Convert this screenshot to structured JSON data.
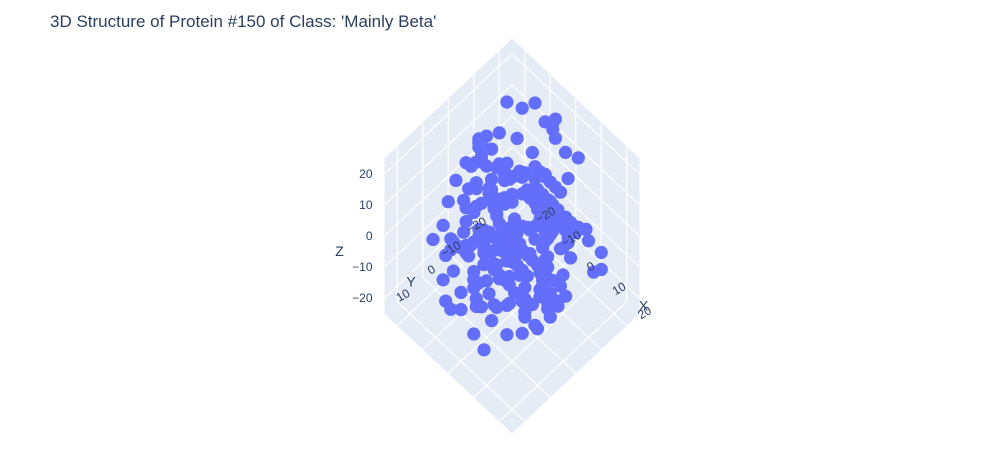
{
  "chart_data": {
    "type": "scatter",
    "title": "3D Structure of Protein #150 of Class: 'Mainly Beta'",
    "axes": {
      "x": {
        "label": "X",
        "ticks": [
          "−20",
          "−10",
          "0",
          "10",
          "20"
        ]
      },
      "y": {
        "label": "Y",
        "ticks": [
          "−20",
          "−10",
          "0",
          "10"
        ]
      },
      "z": {
        "label": "Z",
        "ticks": [
          "−20",
          "−10",
          "0",
          "10",
          "20"
        ]
      }
    },
    "grid": true,
    "marker_color": "#636efa",
    "pane_color": "#e5ecf6",
    "series": [
      {
        "points": [
          [
            -2,
            -18,
            21
          ],
          [
            0,
            -16,
            22
          ],
          [
            3,
            -14,
            23
          ],
          [
            6,
            -15,
            20
          ],
          [
            9,
            -17,
            19
          ],
          [
            10,
            -12,
            17
          ],
          [
            4,
            -9,
            16
          ],
          [
            -1,
            -6,
            15
          ],
          [
            -6,
            -4,
            12
          ],
          [
            -10,
            -2,
            9
          ],
          [
            -13,
            1,
            6
          ],
          [
            -15,
            4,
            3
          ],
          [
            -12,
            6,
            0
          ],
          [
            -8,
            3,
            -2
          ],
          [
            -5,
            0,
            -4
          ],
          [
            -2,
            -3,
            -6
          ],
          [
            2,
            -5,
            -8
          ],
          [
            5,
            -8,
            -10
          ],
          [
            8,
            -6,
            -12
          ],
          [
            11,
            -2,
            -11
          ],
          [
            13,
            2,
            -8
          ],
          [
            10,
            5,
            -5
          ],
          [
            6,
            7,
            -3
          ],
          [
            3,
            9,
            0
          ],
          [
            0,
            11,
            3
          ],
          [
            -4,
            9,
            6
          ],
          [
            -8,
            6,
            8
          ],
          [
            -11,
            3,
            11
          ],
          [
            -14,
            0,
            13
          ],
          [
            -16,
            -4,
            15
          ],
          [
            -13,
            -8,
            17
          ],
          [
            -9,
            -11,
            16
          ],
          [
            -5,
            -13,
            13
          ],
          [
            -1,
            -10,
            10
          ],
          [
            3,
            -7,
            8
          ],
          [
            7,
            -4,
            6
          ],
          [
            11,
            -1,
            4
          ],
          [
            14,
            2,
            2
          ],
          [
            16,
            5,
            -1
          ],
          [
            13,
            8,
            -4
          ],
          [
            9,
            10,
            -7
          ],
          [
            5,
            12,
            -9
          ],
          [
            1,
            13,
            -12
          ],
          [
            -3,
            11,
            -14
          ],
          [
            -7,
            8,
            -16
          ],
          [
            -10,
            5,
            -18
          ],
          [
            -13,
            2,
            -20
          ],
          [
            -11,
            -1,
            -17
          ],
          [
            -8,
            -4,
            -14
          ],
          [
            -4,
            -7,
            -11
          ],
          [
            0,
            -9,
            -8
          ],
          [
            4,
            -11,
            -5
          ],
          [
            8,
            -13,
            -2
          ],
          [
            12,
            -10,
            1
          ],
          [
            15,
            -7,
            4
          ],
          [
            17,
            -3,
            7
          ],
          [
            14,
            0,
            10
          ],
          [
            10,
            3,
            12
          ],
          [
            6,
            5,
            14
          ],
          [
            2,
            7,
            11
          ],
          [
            -2,
            4,
            8
          ],
          [
            -6,
            1,
            5
          ],
          [
            -10,
            -2,
            2
          ],
          [
            -14,
            -5,
            -1
          ],
          [
            -17,
            -8,
            -4
          ],
          [
            -14,
            -11,
            -7
          ],
          [
            -10,
            -14,
            -5
          ],
          [
            -6,
            -16,
            -2
          ],
          [
            -2,
            -14,
            1
          ],
          [
            2,
            -12,
            4
          ],
          [
            6,
            -10,
            7
          ],
          [
            10,
            -8,
            10
          ],
          [
            13,
            -5,
            13
          ],
          [
            9,
            -3,
            16
          ],
          [
            5,
            -1,
            18
          ],
          [
            1,
            1,
            15
          ],
          [
            -3,
            3,
            12
          ],
          [
            -7,
            5,
            9
          ],
          [
            -11,
            7,
            6
          ],
          [
            -9,
            10,
            2
          ],
          [
            -5,
            12,
            -1
          ],
          [
            -1,
            14,
            -4
          ],
          [
            3,
            12,
            -7
          ],
          [
            7,
            9,
            -10
          ],
          [
            11,
            6,
            -13
          ],
          [
            8,
            3,
            -16
          ],
          [
            4,
            0,
            -18
          ],
          [
            0,
            -3,
            -15
          ],
          [
            -4,
            -5,
            -12
          ],
          [
            -8,
            -7,
            -9
          ],
          [
            -12,
            -9,
            -6
          ],
          [
            -15,
            -12,
            -3
          ],
          [
            -12,
            -15,
            0
          ],
          [
            -8,
            -17,
            3
          ],
          [
            -4,
            -15,
            6
          ],
          [
            0,
            -13,
            9
          ],
          [
            4,
            -11,
            12
          ],
          [
            8,
            -9,
            15
          ],
          [
            12,
            -7,
            18
          ],
          [
            14,
            -4,
            15
          ],
          [
            11,
            -1,
            12
          ],
          [
            7,
            1,
            9
          ],
          [
            3,
            3,
            6
          ],
          [
            -1,
            5,
            3
          ],
          [
            -5,
            7,
            0
          ],
          [
            -9,
            9,
            -3
          ],
          [
            -13,
            11,
            -6
          ],
          [
            -10,
            13,
            -9
          ],
          [
            -6,
            14,
            -12
          ],
          [
            -2,
            12,
            -15
          ],
          [
            2,
            10,
            -18
          ],
          [
            6,
            8,
            -21
          ],
          [
            10,
            6,
            -19
          ],
          [
            14,
            4,
            -16
          ],
          [
            16,
            1,
            -13
          ],
          [
            13,
            -2,
            -10
          ],
          [
            9,
            -5,
            -7
          ],
          [
            5,
            -8,
            -4
          ],
          [
            1,
            -11,
            -1
          ],
          [
            -3,
            -13,
            2
          ],
          [
            -7,
            -11,
            5
          ],
          [
            -11,
            -9,
            8
          ],
          [
            -15,
            -7,
            11
          ],
          [
            -17,
            -4,
            14
          ],
          [
            -14,
            -1,
            17
          ],
          [
            -10,
            2,
            19
          ],
          [
            -6,
            4,
            21
          ],
          [
            -2,
            6,
            18
          ],
          [
            2,
            8,
            15
          ],
          [
            6,
            10,
            12
          ],
          [
            10,
            12,
            9
          ],
          [
            13,
            9,
            6
          ],
          [
            9,
            7,
            3
          ],
          [
            5,
            4,
            0
          ],
          [
            1,
            2,
            -3
          ],
          [
            -3,
            0,
            -6
          ],
          [
            -7,
            -2,
            -9
          ],
          [
            -11,
            -4,
            -12
          ],
          [
            -15,
            -6,
            -15
          ],
          [
            -12,
            -9,
            -18
          ],
          [
            -8,
            -12,
            -20
          ],
          [
            -4,
            -10,
            -17
          ],
          [
            0,
            -8,
            -14
          ],
          [
            4,
            -6,
            -11
          ],
          [
            8,
            -3,
            -8
          ],
          [
            12,
            0,
            -5
          ],
          [
            15,
            3,
            -2
          ],
          [
            12,
            6,
            1
          ],
          [
            8,
            8,
            4
          ],
          [
            4,
            11,
            7
          ],
          [
            0,
            13,
            10
          ],
          [
            -4,
            11,
            13
          ],
          [
            -8,
            9,
            16
          ],
          [
            -12,
            6,
            19
          ],
          [
            -9,
            3,
            21
          ],
          [
            -5,
            1,
            19
          ],
          [
            -1,
            -2,
            17
          ],
          [
            3,
            -4,
            14
          ],
          [
            7,
            -6,
            11
          ],
          [
            11,
            -8,
            8
          ],
          [
            15,
            -10,
            5
          ],
          [
            12,
            -13,
            2
          ],
          [
            8,
            -15,
            -1
          ],
          [
            4,
            -17,
            -4
          ],
          [
            0,
            -15,
            -7
          ],
          [
            -4,
            -13,
            -10
          ],
          [
            -8,
            -10,
            -13
          ],
          [
            -12,
            -8,
            -16
          ],
          [
            -16,
            -5,
            -19
          ],
          [
            -13,
            -2,
            -16
          ],
          [
            -9,
            1,
            -13
          ],
          [
            -5,
            3,
            -10
          ],
          [
            -1,
            6,
            -7
          ],
          [
            3,
            8,
            -4
          ],
          [
            7,
            10,
            -1
          ],
          [
            11,
            12,
            2
          ],
          [
            14,
            9,
            5
          ],
          [
            10,
            7,
            8
          ],
          [
            6,
            4,
            11
          ],
          [
            2,
            2,
            14
          ],
          [
            -2,
            -1,
            16
          ],
          [
            -6,
            -3,
            13
          ],
          [
            -10,
            -6,
            10
          ],
          [
            -13,
            -8,
            7
          ],
          [
            -9,
            -11,
            4
          ],
          [
            -5,
            -13,
            1
          ],
          [
            -1,
            -16,
            -2
          ],
          [
            3,
            -14,
            -5
          ],
          [
            7,
            -12,
            -8
          ],
          [
            11,
            -9,
            -11
          ],
          [
            14,
            -7,
            -14
          ],
          [
            10,
            -4,
            -17
          ],
          [
            6,
            -2,
            -19
          ],
          [
            2,
            1,
            -16
          ],
          [
            -2,
            3,
            -13
          ],
          [
            -6,
            5,
            -10
          ],
          [
            -10,
            8,
            -7
          ],
          [
            -14,
            10,
            -4
          ],
          [
            -11,
            12,
            -1
          ],
          [
            -7,
            14,
            2
          ],
          [
            -3,
            12,
            5
          ],
          [
            1,
            9,
            8
          ],
          [
            5,
            7,
            11
          ],
          [
            9,
            5,
            14
          ],
          [
            13,
            2,
            17
          ],
          [
            16,
            0,
            14
          ],
          [
            13,
            -3,
            11
          ],
          [
            9,
            -5,
            8
          ],
          [
            5,
            -8,
            5
          ],
          [
            1,
            -10,
            2
          ],
          [
            -3,
            -12,
            -1
          ],
          [
            -7,
            -14,
            -4
          ],
          [
            -11,
            -16,
            -7
          ],
          [
            -7,
            -17,
            -10
          ],
          [
            -3,
            -16,
            -13
          ],
          [
            1,
            -13,
            -16
          ],
          [
            5,
            -11,
            -19
          ],
          [
            9,
            -9,
            -21
          ],
          [
            12,
            -6,
            -18
          ],
          [
            -20,
            -10,
            9
          ],
          [
            -19,
            -6,
            12
          ],
          [
            -18,
            -2,
            7
          ],
          [
            -20,
            2,
            4
          ],
          [
            -19,
            6,
            1
          ],
          [
            -17,
            10,
            -2
          ],
          [
            -18,
            13,
            -5
          ],
          [
            2,
            15,
            -2
          ],
          [
            5,
            15,
            1
          ],
          [
            8,
            14,
            -6
          ],
          [
            -5,
            15,
            4
          ],
          [
            -1,
            15,
            8
          ],
          [
            17,
            -12,
            6
          ],
          [
            17,
            -9,
            9
          ],
          [
            16,
            -14,
            0
          ],
          [
            18,
            -5,
            3
          ],
          [
            18,
            -1,
            -3
          ],
          [
            17,
            3,
            -8
          ],
          [
            16,
            7,
            -11
          ],
          [
            -16,
            -14,
            20
          ],
          [
            -13,
            -17,
            18
          ],
          [
            -9,
            -18,
            22
          ],
          [
            -5,
            -18,
            19
          ],
          [
            -1,
            -18,
            23
          ],
          [
            19,
            -16,
            -3
          ],
          [
            19,
            -13,
            -7
          ],
          [
            18,
            -17,
            -10
          ],
          [
            -18,
            8,
            -14
          ],
          [
            -16,
            11,
            -18
          ],
          [
            -13,
            13,
            -21
          ],
          [
            -9,
            15,
            -19
          ],
          [
            -5,
            15,
            -16
          ],
          [
            0,
            15,
            -20
          ],
          [
            4,
            15,
            -22
          ]
        ]
      }
    ]
  }
}
